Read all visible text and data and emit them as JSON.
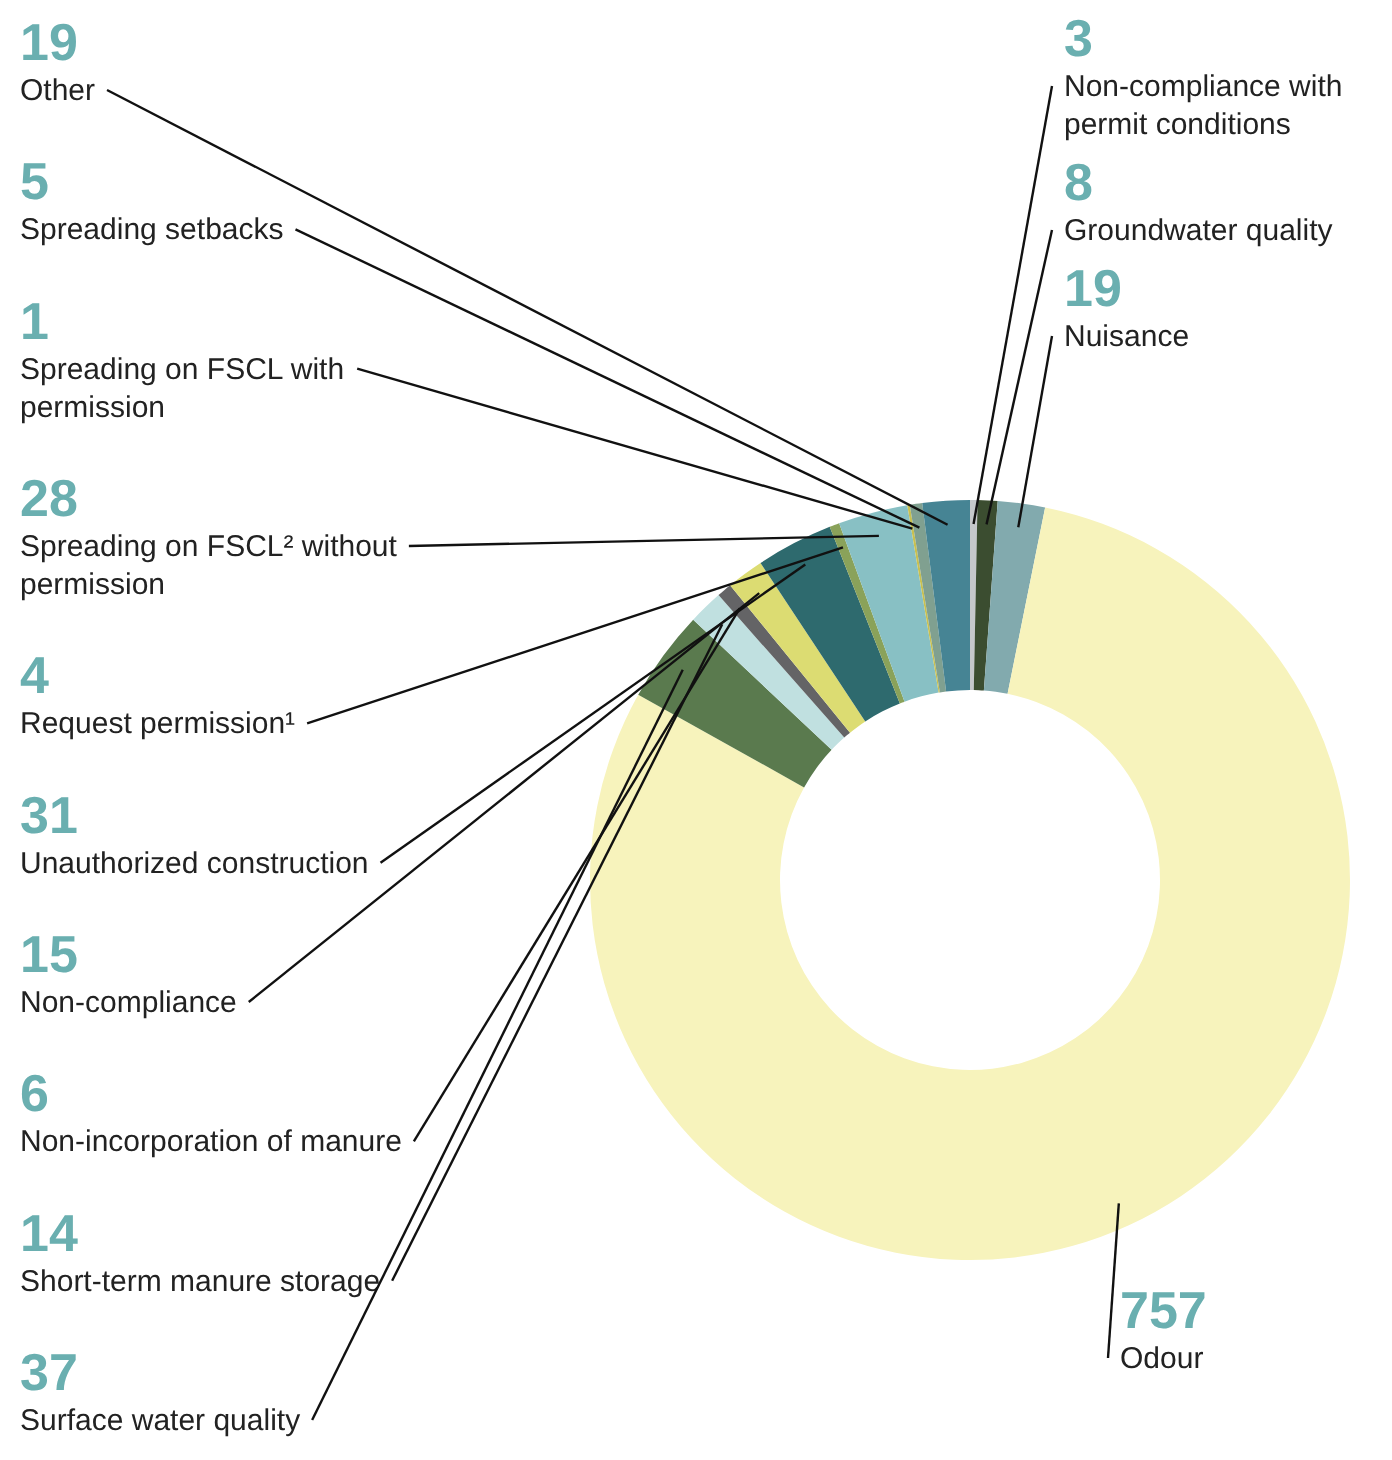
{
  "chart_data": {
    "type": "donut",
    "categories": [
      "Non-compliance with permit conditions",
      "Groundwater quality",
      "Nuisance",
      "Odour",
      "Surface water quality",
      "Short-term manure storage",
      "Non-incorporation of manure",
      "Non-compliance",
      "Unauthorized construction",
      "Request permission¹",
      "Spreading on FSCL² without permission",
      "Spreading on FSCL with permission",
      "Spreading setbacks",
      "Other"
    ],
    "values": [
      3,
      8,
      19,
      757,
      37,
      14,
      6,
      15,
      31,
      4,
      28,
      1,
      5,
      19
    ],
    "colors": [
      "#c5c8cb",
      "#3b4d30",
      "#82aaae",
      "#f7f3bc",
      "#5a7a4e",
      "#c0e0e0",
      "#646466",
      "#dcdc72",
      "#2e6a6e",
      "#8aa25a",
      "#88c0c4",
      "#c8c050",
      "#80a090",
      "#468494"
    ],
    "data_labels": true
  }
}
